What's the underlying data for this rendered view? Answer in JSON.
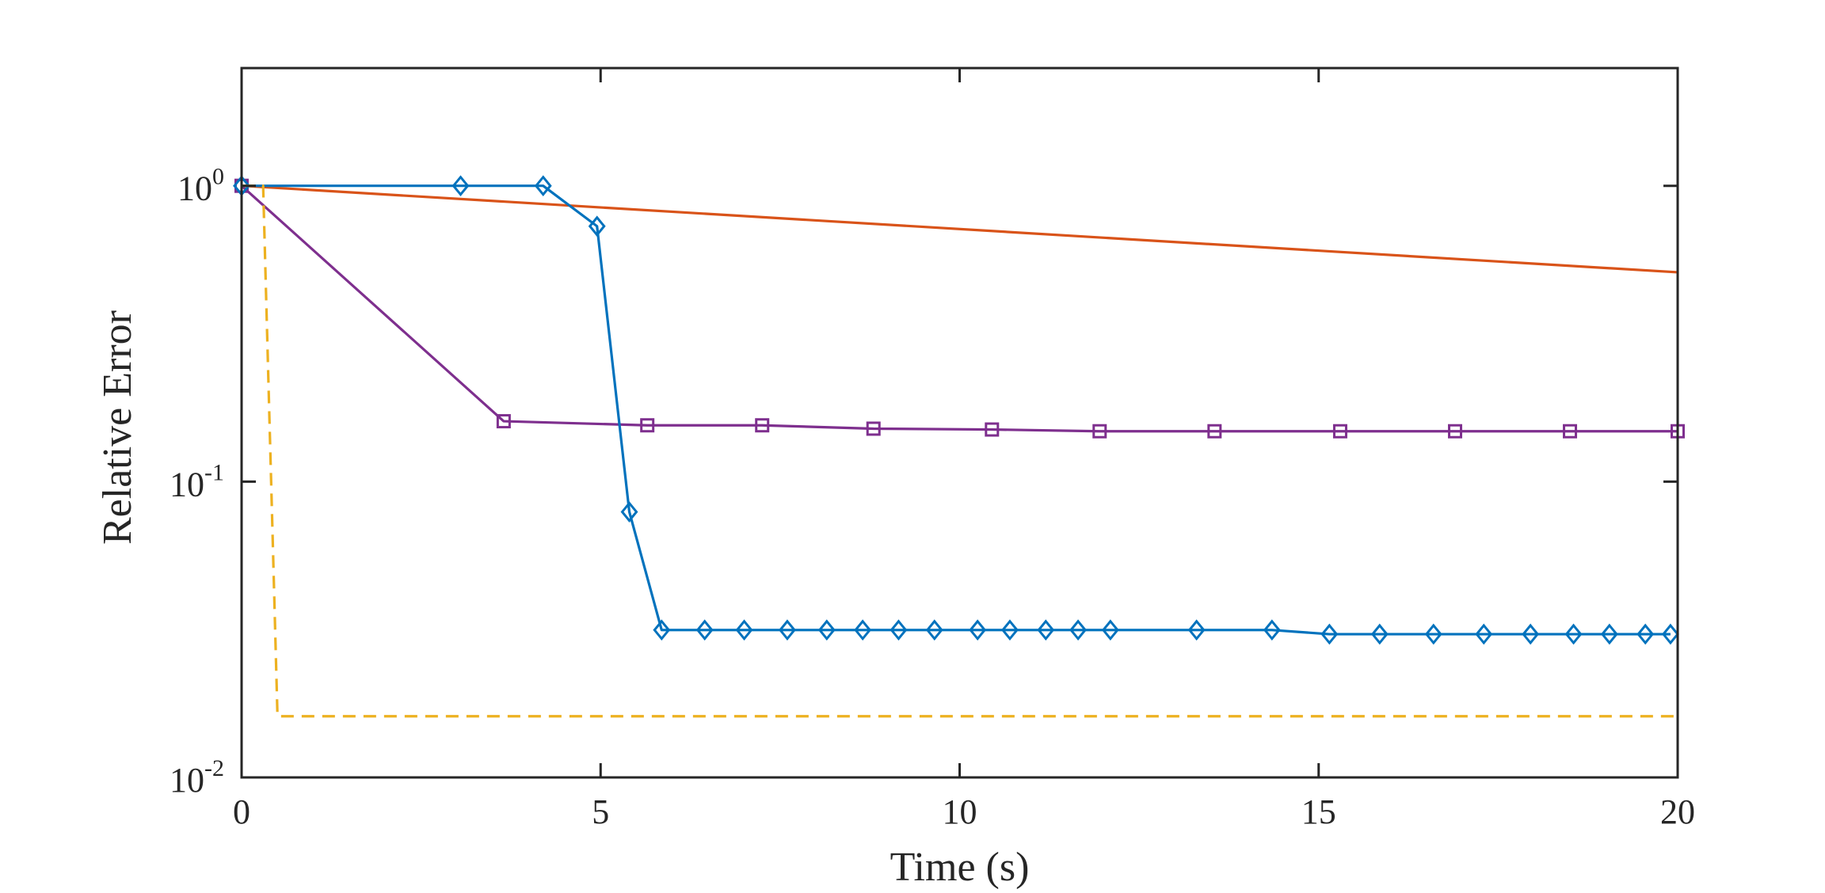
{
  "chart_data": {
    "type": "line",
    "title": "",
    "xlabel": "Time (s)",
    "ylabel": "Relative Error",
    "xlim": [
      0,
      20
    ],
    "ylim": [
      0.01,
      2.5
    ],
    "yscale": "log",
    "grid": false,
    "x_ticks": [
      {
        "value": 0,
        "label": "0"
      },
      {
        "value": 5,
        "label": "5"
      },
      {
        "value": 10,
        "label": "10"
      },
      {
        "value": 15,
        "label": "15"
      },
      {
        "value": 20,
        "label": "20"
      }
    ],
    "y_ticks": [
      {
        "value": 1,
        "base": "10",
        "exp": "0"
      },
      {
        "value": 0.1,
        "base": "10",
        "exp": "-1"
      },
      {
        "value": 0.01,
        "base": "10",
        "exp": "-2"
      }
    ],
    "series": [
      {
        "name": "series-orange",
        "color": "#D95319",
        "dash": "solid",
        "marker": "none",
        "x": [
          0,
          20
        ],
        "y": [
          1.0,
          0.51
        ]
      },
      {
        "name": "series-purple",
        "color": "#7E2F8E",
        "dash": "solid",
        "marker": "square",
        "x": [
          0,
          3.65,
          5.65,
          7.25,
          8.8,
          10.45,
          11.95,
          13.55,
          15.3,
          16.9,
          18.5,
          20.0
        ],
        "y": [
          1.0,
          0.16,
          0.155,
          0.155,
          0.151,
          0.15,
          0.148,
          0.148,
          0.148,
          0.148,
          0.148,
          0.148
        ]
      },
      {
        "name": "series-blue",
        "color": "#0072BD",
        "dash": "solid",
        "marker": "diamond",
        "x": [
          0,
          3.05,
          4.2,
          4.95,
          5.4,
          5.85,
          6.45,
          7.0,
          7.6,
          8.15,
          8.65,
          9.15,
          9.65,
          10.25,
          10.7,
          11.2,
          11.65,
          12.1,
          13.3,
          14.35,
          15.15,
          15.85,
          16.6,
          17.3,
          17.95,
          18.55,
          19.05,
          19.55,
          19.9
        ],
        "y": [
          1.0,
          1.0,
          1.0,
          0.73,
          0.079,
          0.0315,
          0.0315,
          0.0315,
          0.0315,
          0.0315,
          0.0315,
          0.0315,
          0.0315,
          0.0315,
          0.0315,
          0.0315,
          0.0315,
          0.0315,
          0.0315,
          0.0315,
          0.0305,
          0.0305,
          0.0305,
          0.0305,
          0.0305,
          0.0305,
          0.0305,
          0.0305,
          0.0305
        ]
      },
      {
        "name": "series-yellow-dashed",
        "color": "#EDB120",
        "dash": "dashed",
        "marker": "none",
        "x": [
          0,
          0.3,
          0.5,
          20
        ],
        "y": [
          1.0,
          1.0,
          0.0161,
          0.0161
        ]
      }
    ]
  }
}
